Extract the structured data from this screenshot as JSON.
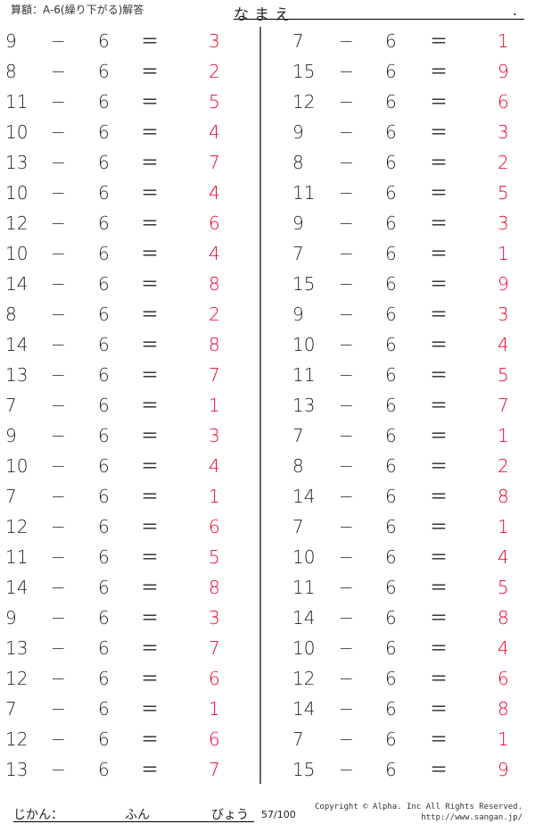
{
  "header": {
    "title": "算額：A-6(繰り下がる)解答",
    "name_label": "なまえ",
    "name_end": "."
  },
  "operators": {
    "minus": "−",
    "equals": "＝"
  },
  "colors": {
    "answer": "#e8002a"
  },
  "left": [
    {
      "a": "9",
      "b": "6",
      "ans": "3"
    },
    {
      "a": "8",
      "b": "6",
      "ans": "2"
    },
    {
      "a": "11",
      "b": "6",
      "ans": "5"
    },
    {
      "a": "10",
      "b": "6",
      "ans": "4"
    },
    {
      "a": "13",
      "b": "6",
      "ans": "7"
    },
    {
      "a": "10",
      "b": "6",
      "ans": "4"
    },
    {
      "a": "12",
      "b": "6",
      "ans": "6"
    },
    {
      "a": "10",
      "b": "6",
      "ans": "4"
    },
    {
      "a": "14",
      "b": "6",
      "ans": "8"
    },
    {
      "a": "8",
      "b": "6",
      "ans": "2"
    },
    {
      "a": "14",
      "b": "6",
      "ans": "8"
    },
    {
      "a": "13",
      "b": "6",
      "ans": "7"
    },
    {
      "a": "7",
      "b": "6",
      "ans": "1"
    },
    {
      "a": "9",
      "b": "6",
      "ans": "3"
    },
    {
      "a": "10",
      "b": "6",
      "ans": "4"
    },
    {
      "a": "7",
      "b": "6",
      "ans": "1"
    },
    {
      "a": "12",
      "b": "6",
      "ans": "6"
    },
    {
      "a": "11",
      "b": "6",
      "ans": "5"
    },
    {
      "a": "14",
      "b": "6",
      "ans": "8"
    },
    {
      "a": "9",
      "b": "6",
      "ans": "3"
    },
    {
      "a": "13",
      "b": "6",
      "ans": "7"
    },
    {
      "a": "12",
      "b": "6",
      "ans": "6"
    },
    {
      "a": "7",
      "b": "6",
      "ans": "1"
    },
    {
      "a": "12",
      "b": "6",
      "ans": "6"
    },
    {
      "a": "13",
      "b": "6",
      "ans": "7"
    }
  ],
  "right": [
    {
      "a": "7",
      "b": "6",
      "ans": "1"
    },
    {
      "a": "15",
      "b": "6",
      "ans": "9"
    },
    {
      "a": "12",
      "b": "6",
      "ans": "6"
    },
    {
      "a": "9",
      "b": "6",
      "ans": "3"
    },
    {
      "a": "8",
      "b": "6",
      "ans": "2"
    },
    {
      "a": "11",
      "b": "6",
      "ans": "5"
    },
    {
      "a": "9",
      "b": "6",
      "ans": "3"
    },
    {
      "a": "7",
      "b": "6",
      "ans": "1"
    },
    {
      "a": "15",
      "b": "6",
      "ans": "9"
    },
    {
      "a": "9",
      "b": "6",
      "ans": "3"
    },
    {
      "a": "10",
      "b": "6",
      "ans": "4"
    },
    {
      "a": "11",
      "b": "6",
      "ans": "5"
    },
    {
      "a": "13",
      "b": "6",
      "ans": "7"
    },
    {
      "a": "7",
      "b": "6",
      "ans": "1"
    },
    {
      "a": "8",
      "b": "6",
      "ans": "2"
    },
    {
      "a": "14",
      "b": "6",
      "ans": "8"
    },
    {
      "a": "7",
      "b": "6",
      "ans": "1"
    },
    {
      "a": "10",
      "b": "6",
      "ans": "4"
    },
    {
      "a": "11",
      "b": "6",
      "ans": "5"
    },
    {
      "a": "14",
      "b": "6",
      "ans": "8"
    },
    {
      "a": "10",
      "b": "6",
      "ans": "4"
    },
    {
      "a": "12",
      "b": "6",
      "ans": "6"
    },
    {
      "a": "14",
      "b": "6",
      "ans": "8"
    },
    {
      "a": "7",
      "b": "6",
      "ans": "1"
    },
    {
      "a": "15",
      "b": "6",
      "ans": "9"
    }
  ],
  "footer": {
    "time_label": "じかん：",
    "minutes": "ふん",
    "seconds": "びょう",
    "score": "57/100",
    "copyright": "Copyright © Alpha. Inc All Rights Reserved.",
    "url": "http://www.sangan.jp/"
  }
}
